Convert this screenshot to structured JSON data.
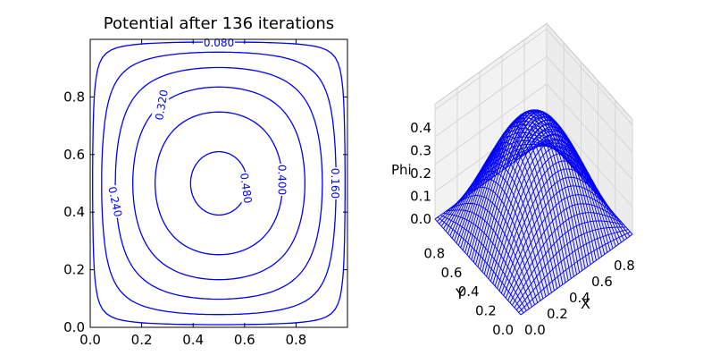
{
  "chart_data": [
    {
      "type": "contour",
      "title": "Potential after 136 iterations",
      "xlabel": "",
      "ylabel": "",
      "xlim": [
        0.0,
        1.0
      ],
      "ylim": [
        0.0,
        1.0
      ],
      "xticks": [
        "0.0",
        "0.2",
        "0.4",
        "0.6",
        "0.8"
      ],
      "yticks": [
        "0.0",
        "0.2",
        "0.4",
        "0.6",
        "0.8"
      ],
      "levels": [
        0.08,
        0.16,
        0.24,
        0.32,
        0.4,
        0.48
      ],
      "level_labels": [
        "0.080",
        "0.160",
        "0.240",
        "0.320",
        "0.400",
        "0.480"
      ],
      "line_color": "#0000ff",
      "grid": false
    },
    {
      "type": "surface3d",
      "title": "",
      "xlabel": "X",
      "ylabel": "Y",
      "zlabel": "Phi",
      "xlim": [
        0.0,
        1.0
      ],
      "ylim": [
        0.0,
        1.0
      ],
      "zlim": [
        0.0,
        0.48
      ],
      "xticks": [
        "0.0",
        "0.2",
        "0.4",
        "0.6",
        "0.8"
      ],
      "yticks": [
        "0.0",
        "0.2",
        "0.4",
        "0.6",
        "0.8"
      ],
      "zticks": [
        "0.0",
        "0.1",
        "0.2",
        "0.3",
        "0.4"
      ],
      "peak_value": 0.48,
      "wire_color": "#0000ff",
      "pane_color": "#f2f2f2",
      "grid": true
    }
  ]
}
